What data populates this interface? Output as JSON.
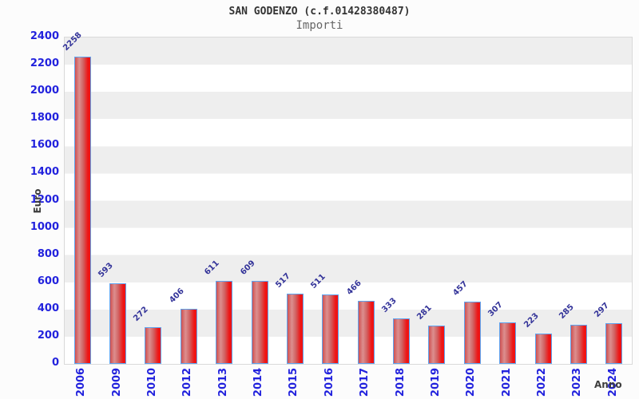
{
  "chart_data": {
    "type": "bar",
    "title": "SAN GODENZO (c.f.01428380487)",
    "subtitle": "Importi",
    "xlabel": "Anno",
    "ylabel": "Euro",
    "categories": [
      "2006",
      "2009",
      "2010",
      "2012",
      "2013",
      "2014",
      "2015",
      "2016",
      "2017",
      "2018",
      "2019",
      "2020",
      "2021",
      "2022",
      "2023",
      "2024"
    ],
    "values": [
      2258,
      593,
      272,
      406,
      611,
      609,
      517,
      511,
      466,
      333,
      281,
      457,
      307,
      223,
      285,
      297
    ],
    "ylim": [
      0,
      2400
    ],
    "yticks": [
      0,
      200,
      400,
      600,
      800,
      1000,
      1200,
      1400,
      1600,
      1800,
      2000,
      2200,
      2400
    ],
    "grid": "alternating horizontal bands every 200 units",
    "legend_position": "none",
    "value_labels_rotation_deg": -45,
    "xtick_rotation_deg": -90,
    "colors": {
      "bar_fill_edge": "#d05050",
      "bar_fill_light": "#dc8f8f",
      "bar_fill_strong": "#ee1414",
      "bar_border": "#5ea4f0",
      "tick_label": "#2222dd",
      "value_label": "#333399",
      "axis_title": "#3d3d3d",
      "title": "#333333",
      "subtitle": "#666666",
      "band_gray": "#eeeeee",
      "band_white": "#ffffff",
      "plot_border": "#d9d9d9",
      "background": "#fcfcfc"
    }
  }
}
